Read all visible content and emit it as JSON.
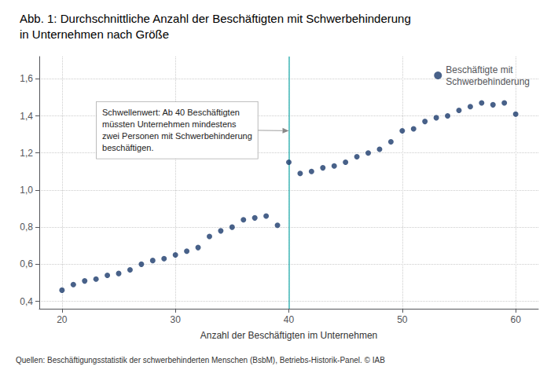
{
  "chart_data": {
    "type": "scatter",
    "title": "Abb. 1: Durchschnittliche Anzahl der Beschäftigten mit Schwerbehinderung\nin Unternehmen nach Größe",
    "xlabel": "Anzahl der Beschäftigten im Unternehmen",
    "source": "Quellen: Beschäftigungsstatistik der schwerbehinderten Menschen (BsbM), Betriebs-Historik-Panel. © IAB",
    "x": [
      20,
      21,
      22,
      23,
      24,
      25,
      26,
      27,
      28,
      29,
      30,
      31,
      32,
      33,
      34,
      35,
      36,
      37,
      38,
      39,
      40,
      41,
      42,
      43,
      44,
      45,
      46,
      47,
      48,
      49,
      50,
      51,
      52,
      53,
      54,
      55,
      56,
      57,
      58,
      59,
      60
    ],
    "series": [
      {
        "name": "Beschäftigte mit\nSchwerbehinderung",
        "color": "#1a3a6b",
        "marker": "circle",
        "values": [
          0.46,
          0.49,
          0.51,
          0.52,
          0.54,
          0.55,
          0.57,
          0.6,
          0.62,
          0.63,
          0.65,
          0.67,
          0.69,
          0.75,
          0.78,
          0.8,
          0.84,
          0.85,
          0.86,
          0.81,
          1.15,
          1.09,
          1.1,
          1.12,
          1.13,
          1.15,
          1.18,
          1.2,
          1.22,
          1.26,
          1.32,
          1.33,
          1.37,
          1.39,
          1.4,
          1.43,
          1.45,
          1.47,
          1.46,
          1.47,
          1.41
        ]
      }
    ],
    "threshold": {
      "x": 40,
      "color": "#40b8b8"
    },
    "annotations": [
      {
        "text": "Schwellenwert: Ab 40 Beschäftigten\nmüssten Unternehmen mindestens\nzwei Personen mit Schwerbehinderung\nbeschäftigen.",
        "x": 40,
        "y": 1.32
      }
    ],
    "xlim": [
      18,
      62
    ],
    "ylim": [
      0.36,
      1.72
    ],
    "xticks": [
      20,
      30,
      40,
      50,
      60
    ],
    "yticks": [
      {
        "value": 0.4,
        "label": "0,4"
      },
      {
        "value": 0.6,
        "label": "0,6"
      },
      {
        "value": 0.8,
        "label": "0,8"
      },
      {
        "value": 1.0,
        "label": "1,0"
      },
      {
        "value": 1.2,
        "label": "1,2"
      },
      {
        "value": 1.4,
        "label": "1,4"
      },
      {
        "value": 1.6,
        "label": "1,6"
      }
    ],
    "grid": true,
    "legend": "upper right"
  }
}
